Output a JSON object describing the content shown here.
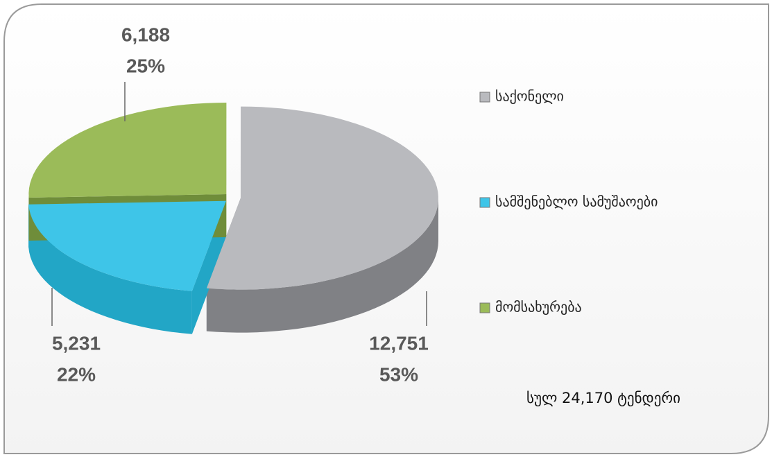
{
  "chart_data": {
    "type": "pie",
    "categories": [
      "საქონელი",
      "სამშენებლო სამუშაოები",
      "მომსახურება"
    ],
    "values": [
      12751,
      5231,
      6188
    ],
    "value_labels": [
      "12,751",
      "5,231",
      "6,188"
    ],
    "percentages": [
      53,
      22,
      25
    ],
    "percentage_labels": [
      "53%",
      "22%",
      "25%"
    ],
    "colors": [
      "#b9babe",
      "#3ec5e8",
      "#9bbb59"
    ],
    "side_colors": [
      "#808185",
      "#22a6c6",
      "#6f8d3a"
    ],
    "legend": "right",
    "annotation": "სულ 24,170 ტენდერი"
  }
}
